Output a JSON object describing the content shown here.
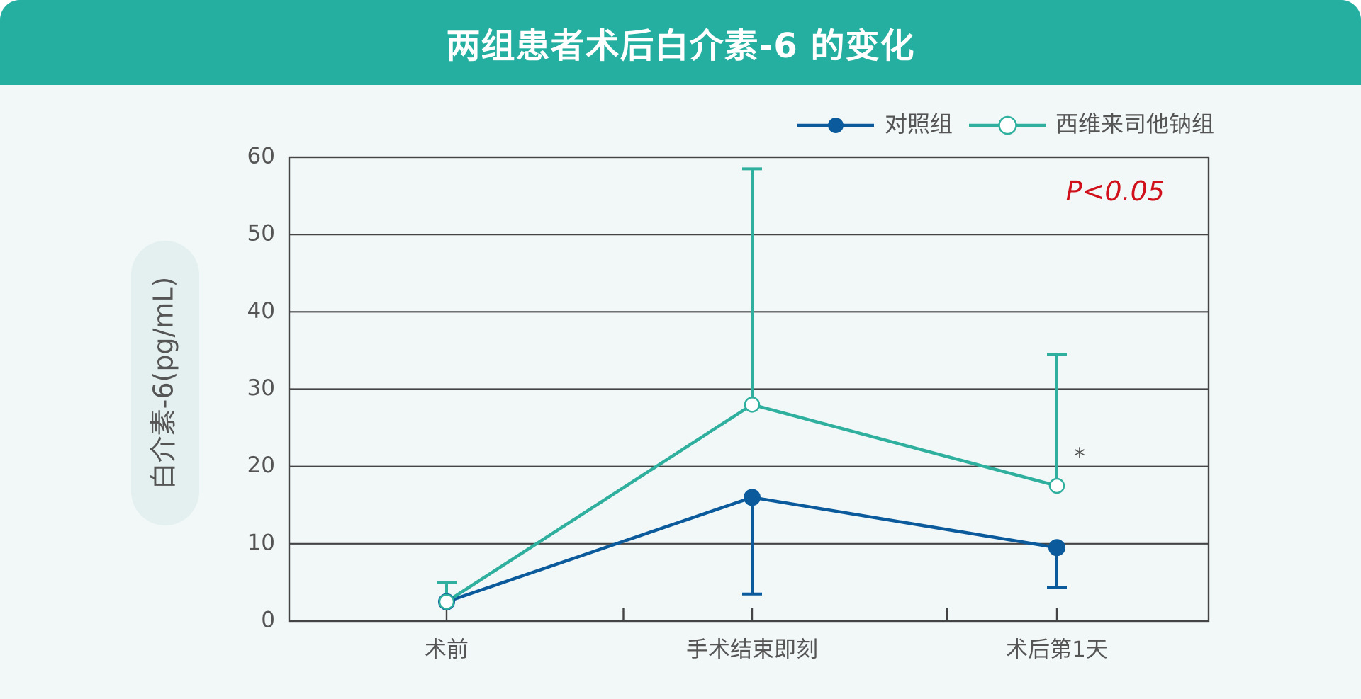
{
  "header": {
    "title": "两组患者术后白介素-6 的变化"
  },
  "colors": {
    "header_bg": "#25afa0",
    "control": "#0a5a9c",
    "treatment": "#2fb09e",
    "grid": "#444444",
    "annotation_red": "#d0101b",
    "text_gray": "#555555",
    "ylabel_bg": "#e3f0ef"
  },
  "chart_data": {
    "type": "line",
    "title": "两组患者术后白介素-6 的变化",
    "xlabel": "",
    "ylabel": "白介素-6(pg/mL)",
    "ylim": [
      0,
      60
    ],
    "yticks": [
      "0",
      "10",
      "20",
      "30",
      "40",
      "50",
      "60"
    ],
    "categories": [
      "术前",
      "手术结束即刻",
      "术后第1天"
    ],
    "grid": "horizontal",
    "legend_position": "top-right",
    "series": [
      {
        "name": "对照组",
        "marker": "filled-circle",
        "values": [
          2.5,
          16,
          9.5
        ],
        "error_lower": [
          null,
          12.5,
          5.2
        ],
        "error_upper": [
          null,
          null,
          null
        ]
      },
      {
        "name": "西维来司他钠组",
        "marker": "open-circle",
        "values": [
          2.5,
          28,
          17.5
        ],
        "error_lower": [
          null,
          null,
          null
        ],
        "error_upper": [
          2.5,
          30.5,
          17
        ]
      }
    ],
    "annotations": {
      "pvalue": "P<0.05",
      "significance_marker": "*"
    }
  }
}
